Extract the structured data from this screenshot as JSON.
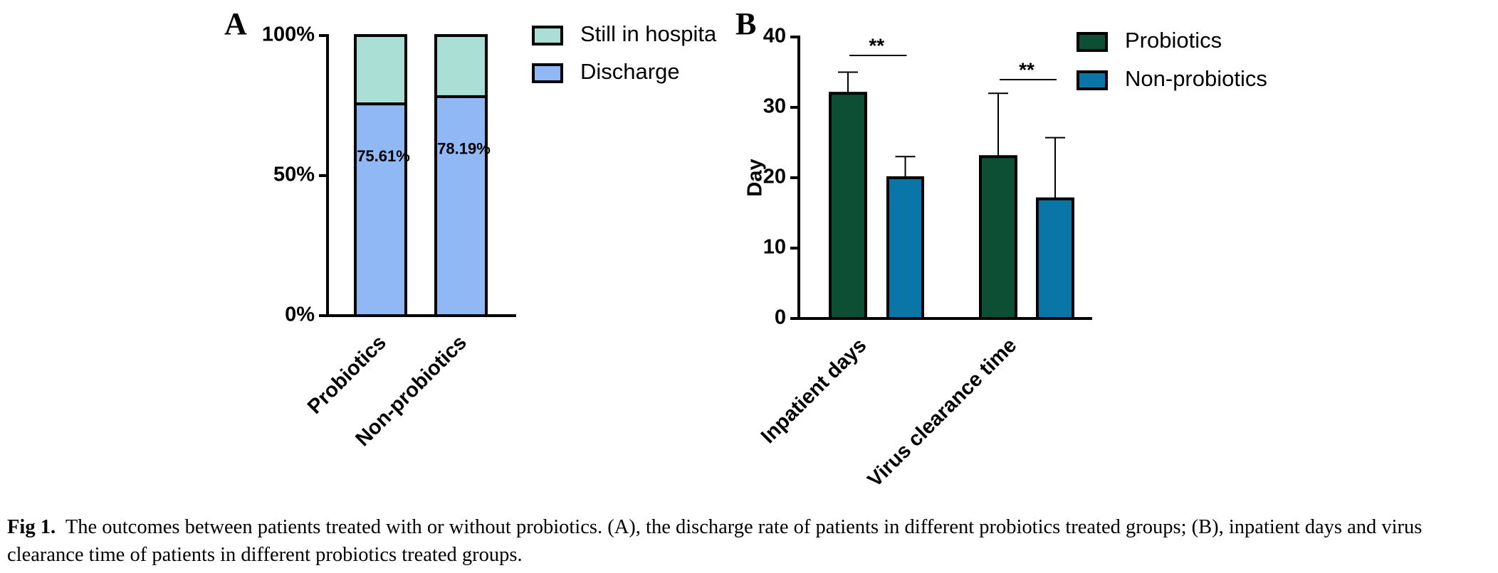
{
  "chart_data": [
    {
      "type": "stacked_bar",
      "panel": "A",
      "categories": [
        "Probiotics",
        "Non-probiotics"
      ],
      "series": [
        {
          "name": "Discharge",
          "color": "#8fb8f5",
          "values": [
            75.61,
            78.19
          ],
          "value_labels": [
            "75.61%",
            "78.19%"
          ]
        },
        {
          "name": "Still in hospita",
          "color": "#aadfd5",
          "values": [
            24.39,
            21.81
          ]
        }
      ],
      "ylim": [
        0,
        100
      ],
      "yticks": [
        {
          "value": 0,
          "label": "0%"
        },
        {
          "value": 50,
          "label": "50%"
        },
        {
          "value": 100,
          "label": "100%"
        }
      ]
    },
    {
      "type": "bar",
      "panel": "B",
      "ylabel": "Day",
      "categories": [
        "Inpatient days",
        "Virus clearance time"
      ],
      "series": [
        {
          "name": "Probiotics",
          "color": "#0d4f35",
          "values": [
            32,
            23
          ],
          "errors": [
            3,
            9
          ]
        },
        {
          "name": "Non-probiotics",
          "color": "#0a76a8",
          "values": [
            20,
            17
          ],
          "errors": [
            3,
            8.7
          ]
        }
      ],
      "annotations": [
        "**",
        "**"
      ],
      "ylim": [
        0,
        40
      ],
      "yticks": [
        0,
        10,
        20,
        30,
        40
      ]
    }
  ],
  "caption": {
    "label": "Fig 1.",
    "text": "The outcomes between patients treated with or without probiotics. (A), the discharge rate of patients in different probiotics treated groups; (B), inpatient days and virus clearance time of patients in different probiotics treated groups."
  }
}
